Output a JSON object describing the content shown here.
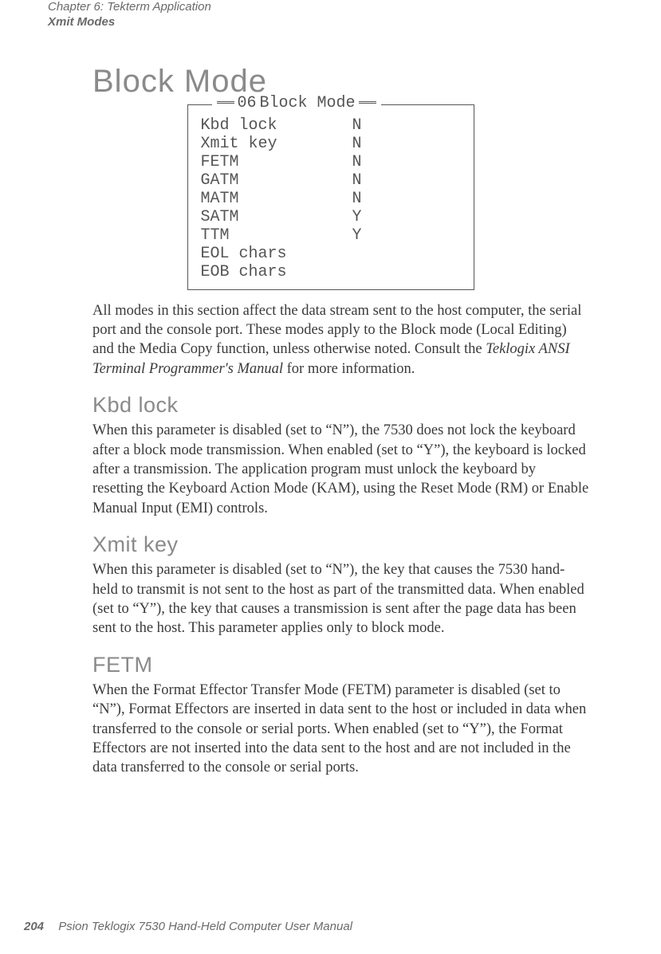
{
  "header": {
    "chapter_line": "Chapter 6: Tekterm Application",
    "section_line": "Xmit Modes"
  },
  "section_title": "Block Mode",
  "config_box": {
    "num": "06",
    "title": "Block Mode",
    "rows": [
      {
        "label": "Kbd lock",
        "value": "N"
      },
      {
        "label": "Xmit key",
        "value": "N"
      },
      {
        "label": "FETM",
        "value": "N"
      },
      {
        "label": "GATM",
        "value": "N"
      },
      {
        "label": "MATM",
        "value": "N"
      },
      {
        "label": "SATM",
        "value": "Y"
      },
      {
        "label": "TTM",
        "value": "Y"
      },
      {
        "label": "EOL chars",
        "value": ""
      },
      {
        "label": "EOB chars",
        "value": ""
      }
    ]
  },
  "intro_para_a": "All modes in this section affect the data stream sent to the host computer, the serial port and the console port. These modes apply to the Block mode (Local Editing) and the Media Copy function, unless otherwise noted. Consult the ",
  "intro_para_ital": "Teklogix ANSI Terminal Programmer's Manual",
  "intro_para_b": " for more information.",
  "kbd": {
    "title": "Kbd lock",
    "text": "When this parameter is disabled (set to “N”), the 7530 does not lock the keyboard after a block mode transmission. When enabled (set to “Y”), the keyboard is locked after a transmission. The application program must unlock the keyboard by resetting the Keyboard Action Mode (KAM), using the Reset Mode (RM) or Enable Manual Input (EMI) controls."
  },
  "xmit": {
    "title": "Xmit key",
    "text": "When this parameter is disabled (set to “N”), the key that causes the 7530 hand-held to transmit is not sent to the host as part of the transmitted data. When enabled (set to “Y”), the key that causes a transmission is sent after the page data has been sent to the host. This parameter applies only to block mode."
  },
  "fetm": {
    "title": "FETM",
    "text": "When the Format Effector Transfer Mode (FETM) parameter is disabled (set to “N”), Format Effectors are inserted in data sent to the host or included in data when transferred to the console or serial ports. When enabled (set to “Y”), the Format Effectors are not inserted into the data sent to the host and are not included in the data transferred to the console or serial ports."
  },
  "footer": {
    "page": "204",
    "manual": "Psion Teklogix 7530 Hand-Held Computer User Manual"
  }
}
